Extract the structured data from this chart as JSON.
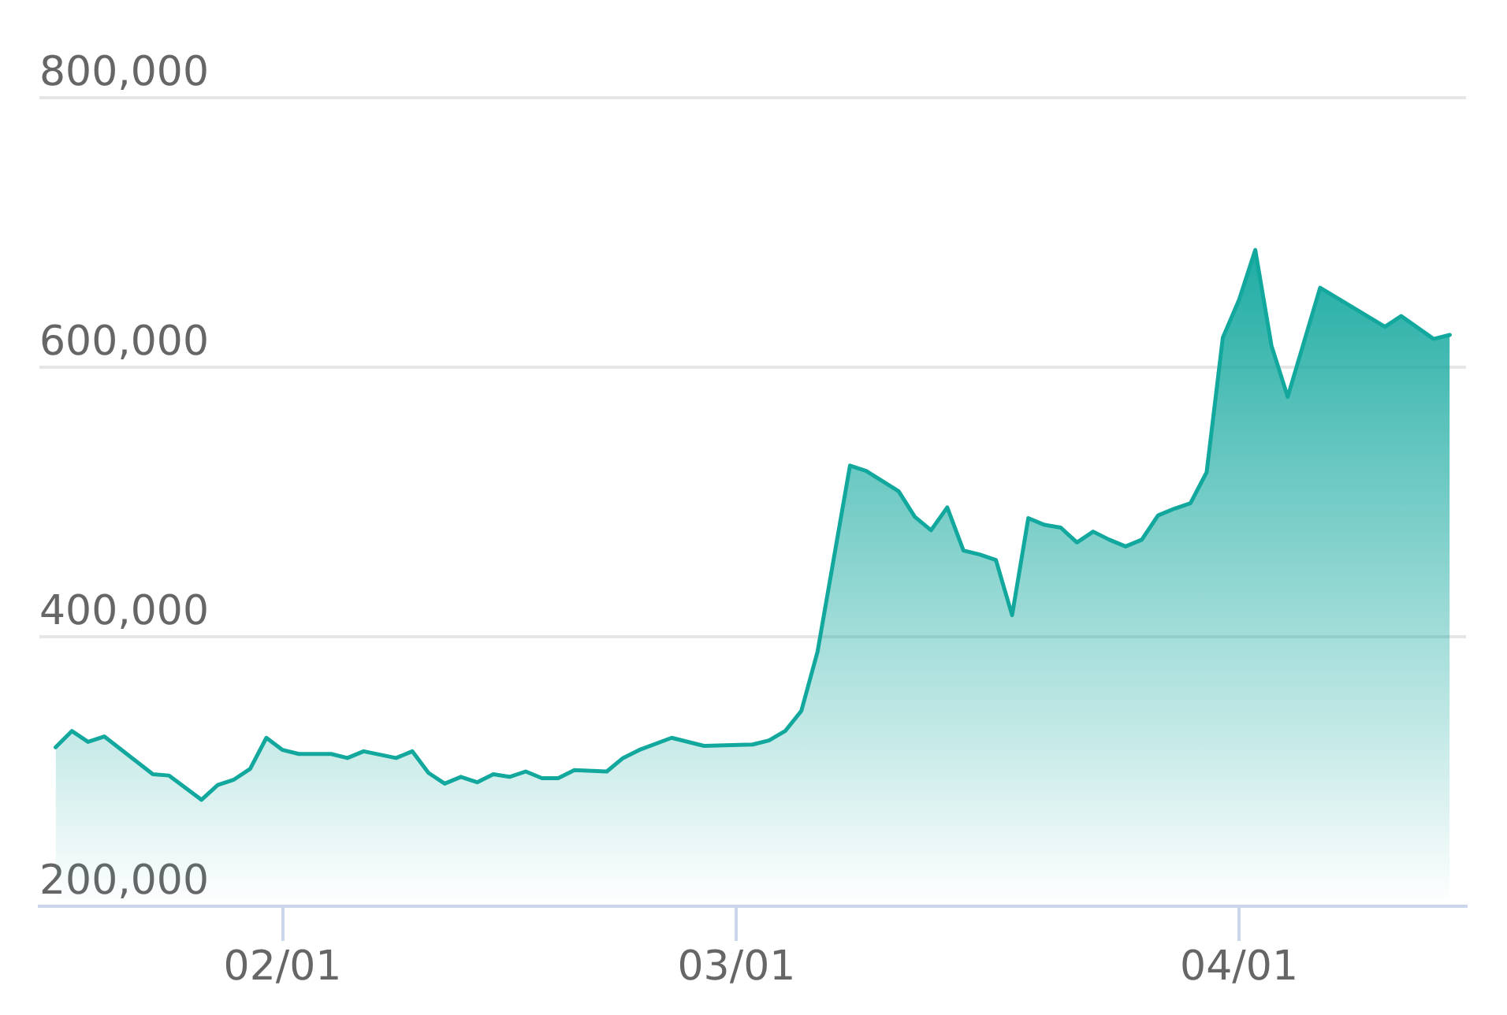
{
  "chart_data": {
    "type": "area",
    "color": "#13a89e",
    "marker": "none",
    "line_style": "solid",
    "grid": "y",
    "xlim": [
      "--01-17",
      "--04-15"
    ],
    "xticks": [
      {
        "value": "--02-01",
        "label": "02/01"
      },
      {
        "value": "--03-01",
        "label": "03/01"
      },
      {
        "value": "--04-01",
        "label": "04/01"
      }
    ],
    "ylim": [
      200000,
      800000
    ],
    "yticks": [
      {
        "value": 200000,
        "label": "200,000"
      },
      {
        "value": 400000,
        "label": "400,000"
      },
      {
        "value": 600000,
        "label": "600,000"
      },
      {
        "value": 800000,
        "label": "800,000"
      }
    ],
    "x": [
      "--01-18",
      "--01-19",
      "--01-20",
      "--01-21",
      "--01-24",
      "--01-25",
      "--01-27",
      "--01-28",
      "--01-29",
      "--01-30",
      "--01-31",
      "--02-01",
      "--02-02",
      "--02-04",
      "--02-05",
      "--02-06",
      "--02-08",
      "--02-09",
      "--02-10",
      "--02-11",
      "--02-12",
      "--02-13",
      "--02-14",
      "--02-15",
      "--02-16",
      "--02-17",
      "--02-18",
      "--02-19",
      "--02-21",
      "--02-22",
      "--02-23",
      "--02-25",
      "--02-27",
      "--03-02",
      "--03-03",
      "--03-04",
      "--03-05",
      "--03-06",
      "--03-08",
      "--03-09",
      "--03-11",
      "--03-12",
      "--03-13",
      "--03-14",
      "--03-15",
      "--03-16",
      "--03-17",
      "--03-18",
      "--03-19",
      "--03-20",
      "--03-21",
      "--03-22",
      "--03-23",
      "--03-24",
      "--03-25",
      "--03-26",
      "--03-27",
      "--03-28",
      "--03-29",
      "--03-30",
      "--03-31",
      "--04-01",
      "--04-02",
      "--04-03",
      "--04-04",
      "--04-06",
      "--04-10",
      "--04-11",
      "--04-13",
      "--04-14"
    ],
    "values": [
      318000,
      330000,
      322000,
      326000,
      298000,
      297000,
      279000,
      290000,
      294000,
      302000,
      325000,
      316000,
      313000,
      313000,
      310000,
      315000,
      310000,
      315000,
      299000,
      291000,
      296000,
      292000,
      298000,
      296000,
      300000,
      295000,
      295000,
      301000,
      300000,
      310000,
      316000,
      325000,
      319000,
      320000,
      323000,
      330000,
      345000,
      389000,
      527000,
      523000,
      508000,
      489000,
      479000,
      496000,
      464000,
      461000,
      457000,
      416000,
      488000,
      483000,
      481000,
      470000,
      478000,
      472000,
      467000,
      472000,
      490000,
      495000,
      499000,
      522000,
      622000,
      650000,
      687000,
      616000,
      578000,
      659000,
      630000,
      638000,
      621000,
      624000
    ]
  }
}
